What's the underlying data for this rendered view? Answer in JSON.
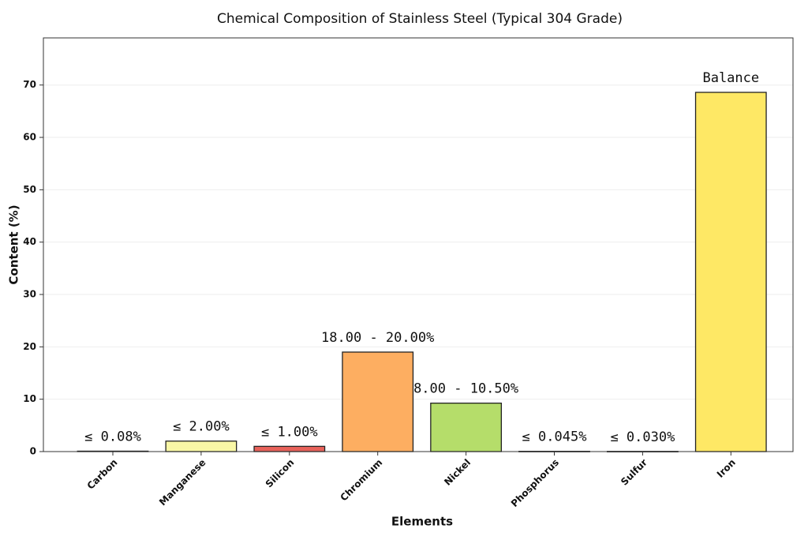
{
  "chart_data": {
    "type": "bar",
    "title": "Chemical Composition of Stainless Steel (Typical 304 Grade)",
    "x_label": "Elements",
    "y_label": "Content (%)",
    "categories": [
      "Carbon",
      "Manganese",
      "Silicon",
      "Chromium",
      "Nickel",
      "Phosphorus",
      "Sulfur",
      "Iron"
    ],
    "values": [
      0.08,
      2.0,
      1.0,
      19,
      9.25,
      0.045,
      0.03,
      68.6
    ],
    "value_labels": [
      "≤ 0.08%",
      "≤ 2.00%",
      "≤ 1.00%",
      "18.00 - 20.00%",
      "8.00 - 10.50%",
      "≤ 0.045%",
      "≤ 0.030%",
      "Balance"
    ],
    "colors": [
      "#a50026",
      "#f9f7a6",
      "#e8625a",
      "#fdae61",
      "#b5dd6a",
      "#3aa357",
      "#1a9850",
      "#fee865"
    ],
    "ylim": [
      0,
      79
    ],
    "yticks": [
      0,
      10,
      20,
      30,
      40,
      50,
      60,
      70
    ],
    "grid": true
  }
}
